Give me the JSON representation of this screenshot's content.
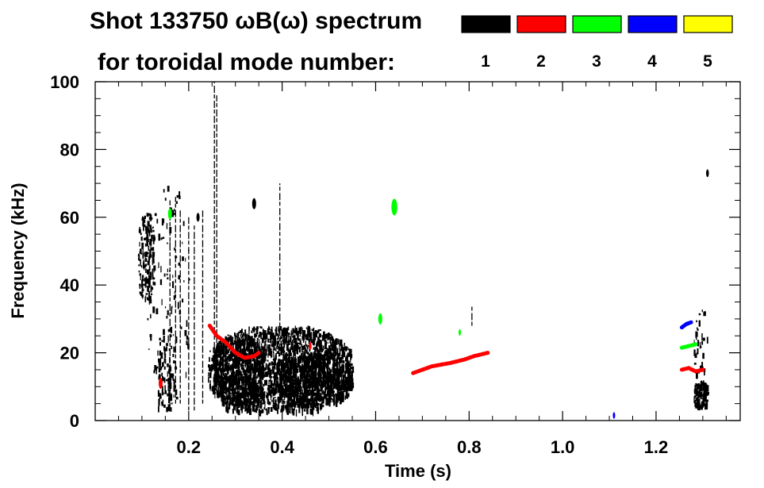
{
  "chart_data": {
    "type": "spectrogram",
    "title_line1": "Shot 133750 ωB(ω) spectrum",
    "title_line2": "for toroidal mode number:",
    "xlabel": "Time (s)",
    "ylabel": "Frequency (kHz)",
    "xlim": [
      0.0,
      1.38
    ],
    "ylim": [
      0,
      100
    ],
    "x_ticks": [
      {
        "value": 0.2,
        "label": "0.2"
      },
      {
        "value": 0.4,
        "label": "0.4"
      },
      {
        "value": 0.6,
        "label": "0.6"
      },
      {
        "value": 0.8,
        "label": "0.8"
      },
      {
        "value": 1.0,
        "label": "1.0"
      },
      {
        "value": 1.2,
        "label": "1.2"
      }
    ],
    "y_ticks": [
      {
        "value": 0,
        "label": "0"
      },
      {
        "value": 20,
        "label": "20"
      },
      {
        "value": 40,
        "label": "40"
      },
      {
        "value": 60,
        "label": "60"
      },
      {
        "value": 80,
        "label": "80"
      },
      {
        "value": 100,
        "label": "100"
      }
    ],
    "legend": [
      {
        "label": "1",
        "color": "#000000"
      },
      {
        "label": "2",
        "color": "#ff0000"
      },
      {
        "label": "3",
        "color": "#00ff00"
      },
      {
        "label": "4",
        "color": "#0000ff"
      },
      {
        "label": "5",
        "color": "#ffff00"
      }
    ],
    "regions": [
      {
        "mode": 1,
        "t": [
          0.09,
          0.125
        ],
        "f": [
          35,
          62
        ],
        "density": 180
      },
      {
        "mode": 1,
        "t": [
          0.11,
          0.2
        ],
        "f": [
          2,
          70
        ],
        "density": 150
      },
      {
        "mode": 1,
        "t": [
          0.13,
          0.17
        ],
        "f": [
          4,
          22
        ],
        "density": 80
      },
      {
        "mode": 1,
        "t": [
          0.24,
          0.55
        ],
        "f": [
          3,
          28
        ],
        "density": 2200
      },
      {
        "mode": 1,
        "t": [
          0.39,
          0.55
        ],
        "f": [
          5,
          20
        ],
        "density": 700
      },
      {
        "mode": 1,
        "t": [
          0.25,
          0.36
        ],
        "f": [
          3,
          26
        ],
        "density": 600
      },
      {
        "mode": 1,
        "t": [
          1.28,
          1.31
        ],
        "f": [
          4,
          12
        ],
        "density": 140
      },
      {
        "mode": 1,
        "t": [
          1.28,
          1.31
        ],
        "f": [
          12,
          33
        ],
        "density": 40
      }
    ],
    "lines": [
      {
        "mode": 1,
        "t": 0.255,
        "f": [
          15,
          100
        ]
      },
      {
        "mode": 1,
        "t": 0.26,
        "f": [
          8,
          96
        ]
      },
      {
        "mode": 1,
        "t": 0.395,
        "f": [
          10,
          70
        ]
      },
      {
        "mode": 1,
        "t": 0.182,
        "f": [
          5,
          62
        ]
      },
      {
        "mode": 1,
        "t": 0.2,
        "f": [
          3,
          60
        ]
      },
      {
        "mode": 1,
        "t": 0.212,
        "f": [
          3,
          58
        ]
      },
      {
        "mode": 1,
        "t": 0.172,
        "f": [
          5,
          66
        ]
      },
      {
        "mode": 1,
        "t": 0.16,
        "f": [
          4,
          65
        ]
      },
      {
        "mode": 1,
        "t": 0.23,
        "f": [
          5,
          62
        ]
      },
      {
        "mode": 1,
        "t": 0.806,
        "f": [
          28,
          34
        ]
      }
    ],
    "tracks": [
      {
        "mode": 2,
        "points": [
          [
            0.245,
            28
          ],
          [
            0.26,
            25
          ],
          [
            0.28,
            23
          ],
          [
            0.3,
            20
          ],
          [
            0.32,
            18.5
          ],
          [
            0.34,
            19
          ],
          [
            0.35,
            20
          ]
        ]
      },
      {
        "mode": 2,
        "points": [
          [
            0.68,
            14
          ],
          [
            0.72,
            16
          ],
          [
            0.76,
            17
          ],
          [
            0.79,
            18
          ],
          [
            0.81,
            19
          ],
          [
            0.84,
            20
          ]
        ]
      },
      {
        "mode": 2,
        "points": [
          [
            1.255,
            15
          ],
          [
            1.27,
            15.5
          ],
          [
            1.285,
            14.5
          ],
          [
            1.3,
            15
          ]
        ]
      },
      {
        "mode": 3,
        "points": [
          [
            1.255,
            21.5
          ],
          [
            1.27,
            22
          ],
          [
            1.285,
            22.5
          ]
        ]
      },
      {
        "mode": 4,
        "points": [
          [
            1.255,
            27.5
          ],
          [
            1.265,
            28.5
          ],
          [
            1.275,
            29
          ]
        ]
      }
    ],
    "spots": [
      {
        "mode": 3,
        "t": 0.64,
        "f": 63,
        "size": 1.5
      },
      {
        "mode": 1,
        "t": 0.34,
        "f": 64,
        "size": 1
      },
      {
        "mode": 1,
        "t": 0.22,
        "f": 60,
        "size": 0.8
      },
      {
        "mode": 2,
        "t": 0.14,
        "f": 11,
        "size": 1
      },
      {
        "mode": 3,
        "t": 0.16,
        "f": 61,
        "size": 1
      },
      {
        "mode": 3,
        "t": 0.61,
        "f": 30,
        "size": 1
      },
      {
        "mode": 2,
        "t": 0.46,
        "f": 22,
        "size": 0.7
      },
      {
        "mode": 3,
        "t": 0.78,
        "f": 26,
        "size": 0.6
      },
      {
        "mode": 4,
        "t": 1.11,
        "f": 1.5,
        "size": 0.6
      },
      {
        "mode": 1,
        "t": 1.31,
        "f": 73,
        "size": 0.7
      }
    ]
  }
}
